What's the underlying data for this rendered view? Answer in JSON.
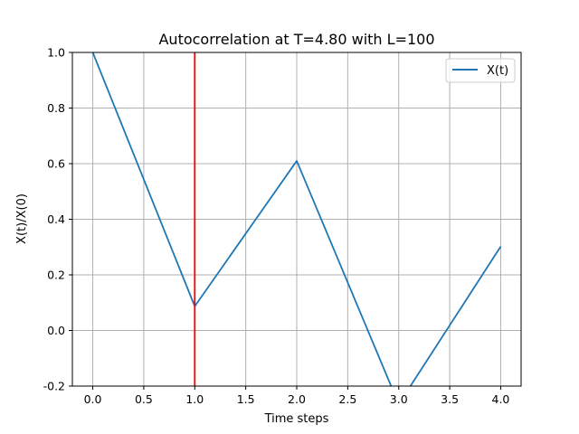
{
  "chart_data": {
    "type": "line",
    "title": "Autocorrelation at T=4.80 with L=100",
    "xlabel": "Time steps",
    "ylabel": "X(t)/X(0)",
    "xlim": [
      -0.2,
      4.2
    ],
    "ylim": [
      -0.2,
      1.0
    ],
    "xticks": [
      "0.0",
      "0.5",
      "1.0",
      "1.5",
      "2.0",
      "2.5",
      "3.0",
      "3.5",
      "4.0"
    ],
    "yticks": [
      "-0.2",
      "0.0",
      "0.2",
      "0.4",
      "0.6",
      "0.8",
      "1.0"
    ],
    "grid": true,
    "legend": "upper right",
    "series": [
      {
        "name": "X(t)",
        "color": "#1f77b4",
        "x": [
          0,
          1,
          2,
          3,
          4
        ],
        "y": [
          1.0,
          0.087,
          0.61,
          -0.265,
          0.302
        ]
      }
    ],
    "vline": {
      "x": 1.0,
      "color": "#ff0000"
    }
  }
}
